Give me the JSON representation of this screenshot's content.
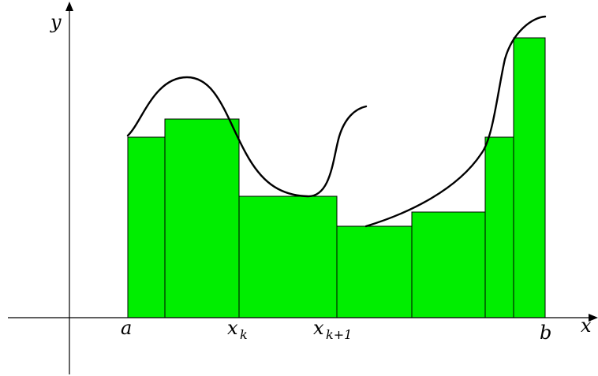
{
  "labels": {
    "y_axis": "y",
    "x_axis": "x",
    "a": "a",
    "xk_base": "x",
    "xk_sub": "k",
    "xk1_base": "x",
    "xk1_sub": "k+1",
    "b": "b"
  },
  "colors": {
    "rect_fill": "#00ee00",
    "stroke": "#000000"
  }
}
